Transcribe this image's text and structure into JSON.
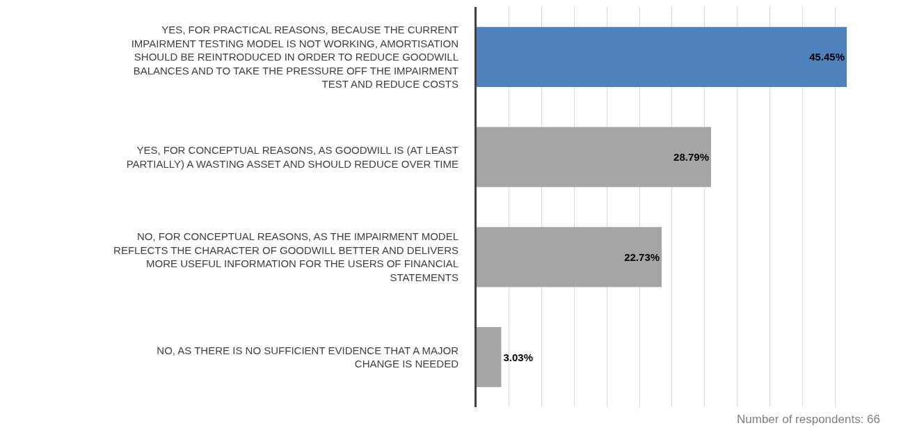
{
  "chart_data": {
    "type": "bar",
    "orientation": "horizontal",
    "categories": [
      "YES, FOR PRACTICAL REASONS, BECAUSE THE CURRENT IMPAIRMENT TESTING MODEL IS NOT WORKING, AMORTISATION SHOULD BE REINTRODUCED IN ORDER TO REDUCE GOODWILL BALANCES AND TO TAKE THE PRESSURE OFF THE IMPAIRMENT TEST AND REDUCE COSTS",
      "YES, FOR CONCEPTUAL REASONS, AS GOODWILL IS (AT LEAST PARTIALLY) A WASTING ASSET AND SHOULD REDUCE OVER TIME",
      "NO, FOR CONCEPTUAL REASONS, AS THE IMPAIRMENT MODEL REFLECTS THE CHARACTER OF GOODWILL BETTER AND DELIVERS MORE USEFUL INFORMATION FOR THE USERS OF FINANCIAL STATEMENTS",
      "NO, AS THERE IS NO SUFFICIENT EVIDENCE THAT A MAJOR CHANGE IS NEEDED"
    ],
    "values": [
      45.45,
      28.79,
      22.73,
      3.03
    ],
    "value_labels": [
      "45.45%",
      "28.79%",
      "22.73%",
      "3.03%"
    ],
    "colors": [
      "#4f81bd",
      "#a5a5a5",
      "#a5a5a5",
      "#a5a5a5"
    ],
    "xticks": [
      {
        "value": 0,
        "label": null
      },
      {
        "value": 4,
        "label": null
      },
      {
        "value": 8,
        "label": null
      },
      {
        "value": 12,
        "label": null
      },
      {
        "value": 16,
        "label": null
      },
      {
        "value": 20,
        "label": null
      },
      {
        "value": 24,
        "label": null
      },
      {
        "value": 28,
        "label": null
      },
      {
        "value": 32,
        "label": null
      },
      {
        "value": 36,
        "label": null
      },
      {
        "value": 40,
        "label": null
      },
      {
        "value": 44,
        "label": null
      }
    ],
    "grid": "x",
    "tick_labels": "y",
    "annotations": [
      "Number of respondents: 66"
    ]
  }
}
